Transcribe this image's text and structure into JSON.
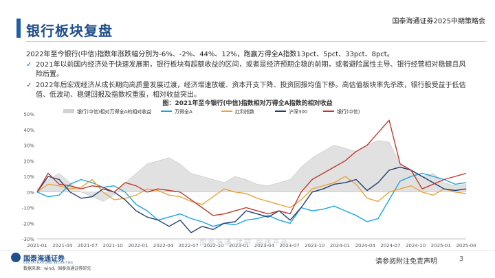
{
  "header": {
    "title": "银行板块复盘",
    "caption": "国泰海通证券2025中期策略会"
  },
  "body": {
    "lead": "2022年至今银行(中信)指数年涨跌幅分别为-6%、-2%、44%、12%，跑赢万得全A指数13pct、5pct、33pct、8pct。",
    "bullets": [
      "2021年以前国内经济处于快速发展期，银行板块有超额收益的区间，或者是经济预期企稳的前期，或者避险属性主导、银行经营相对稳健且风险后置。",
      "2022年后宏观经济从成长期向高质量发展过渡，经济增速放缓、资本开支下降、投资回报均值下移。高估值板块率先杀跌，银行股受益于低估值、低波动、稳健回报及指数权重股，相对收益突出。"
    ]
  },
  "colors": {
    "accent": "#1f5fa8",
    "title": "#1f4f8b",
    "series_relative": "#bdbdbd",
    "series_wind": "#1aa3e0",
    "series_dividend": "#e8a33a",
    "series_hs300": "#1f3c73",
    "series_bank": "#c0392b"
  },
  "chart_data": {
    "type": "line",
    "title": "图：2021年至今银行(中信)指数相对万得全A指数的相对收益",
    "legend_position": "top",
    "x_ticks": [
      "2021-01",
      "2021-04",
      "2021-07",
      "2021-10",
      "2022-01",
      "2022-04",
      "2022-07",
      "2022-10",
      "2023-01",
      "2023-04",
      "2023-07",
      "2023-10",
      "2024-01",
      "2024-04",
      "2024-07",
      "2024-10",
      "2025-01",
      "2025-04"
    ],
    "y_ticks": [
      "50%",
      "40%",
      "30%",
      "20%",
      "10%",
      "0%",
      "-10%",
      "-20%",
      "-30%"
    ],
    "ylim": [
      -0.3,
      0.5
    ],
    "grid": false,
    "series": [
      {
        "name": "银行(中信)相对万得全A的相对收益",
        "style": "area",
        "color_key": "series_relative",
        "values": [
          0.02,
          0.08,
          0.12,
          0.06,
          0.0,
          -0.03,
          -0.06,
          -0.02,
          0.06,
          0.12,
          0.18,
          0.2,
          0.22,
          0.18,
          0.12,
          0.1,
          0.08,
          0.06,
          0.1,
          0.08,
          0.05,
          0.04,
          0.06,
          0.08,
          0.16,
          0.22,
          0.26,
          0.3,
          0.28,
          0.26,
          0.3,
          0.33,
          0.32,
          0.18,
          0.14,
          0.1,
          0.12,
          0.06,
          0.04,
          0.05
        ]
      },
      {
        "name": "万得全A",
        "style": "line",
        "color_key": "series_wind",
        "values": [
          0.0,
          -0.03,
          -0.02,
          0.05,
          0.08,
          0.06,
          0.03,
          0.04,
          0.0,
          -0.08,
          -0.12,
          -0.18,
          -0.16,
          -0.14,
          -0.17,
          -0.19,
          -0.22,
          -0.2,
          -0.21,
          -0.18,
          -0.17,
          -0.15,
          -0.18,
          -0.2,
          -0.1,
          -0.12,
          -0.11,
          -0.09,
          -0.12,
          -0.15,
          -0.19,
          -0.17,
          -0.05,
          0.07,
          0.1,
          0.12,
          0.1,
          0.08,
          0.05,
          0.06
        ]
      },
      {
        "name": "红利指数",
        "style": "line",
        "color_key": "series_dividend",
        "values": [
          0.0,
          0.05,
          0.04,
          0.02,
          0.03,
          0.08,
          0.0,
          -0.05,
          -0.04,
          -0.02,
          0.02,
          0.01,
          -0.02,
          -0.03,
          -0.06,
          -0.08,
          -0.03,
          0.02,
          0.0,
          -0.01,
          -0.04,
          -0.06,
          -0.08,
          -0.1,
          -0.05,
          0.02,
          0.04,
          0.06,
          0.1,
          0.05,
          -0.04,
          -0.06,
          0.0,
          0.02,
          0.04,
          0.0,
          -0.02,
          0.02,
          0.0,
          -0.01
        ]
      },
      {
        "name": "沪深300",
        "style": "line",
        "color_key": "series_hs300",
        "values": [
          0.0,
          0.1,
          0.08,
          0.0,
          -0.04,
          -0.03,
          0.02,
          0.0,
          -0.05,
          -0.12,
          -0.16,
          -0.18,
          -0.22,
          -0.18,
          -0.26,
          -0.22,
          -0.24,
          -0.2,
          -0.19,
          -0.12,
          -0.14,
          -0.16,
          -0.12,
          -0.18,
          -0.1,
          0.0,
          0.02,
          0.05,
          0.06,
          0.08,
          0.01,
          0.06,
          0.14,
          0.16,
          0.14,
          0.1,
          0.06,
          0.02,
          0.01,
          0.02
        ]
      },
      {
        "name": "银行(中信)",
        "style": "line",
        "color_key": "series_bank",
        "values": [
          0.0,
          0.12,
          0.05,
          0.04,
          0.02,
          0.04,
          0.03,
          0.0,
          0.06,
          0.04,
          0.0,
          0.02,
          0.01,
          0.0,
          -0.05,
          -0.1,
          -0.15,
          -0.14,
          -0.12,
          -0.1,
          -0.12,
          -0.14,
          -0.12,
          -0.14,
          0.0,
          0.08,
          0.12,
          0.16,
          0.2,
          0.26,
          0.3,
          0.38,
          0.46,
          0.18,
          0.14,
          0.02,
          0.05,
          0.08,
          0.1,
          0.12
        ]
      }
    ]
  },
  "footer": {
    "logo_text": "国泰海通证券",
    "logo_sub": "GUOTAI HAITONG SECURITIES",
    "source": "数据来源：wind，国泰海通证券研究",
    "disclaimer": "请参阅附注免责声明",
    "page": "3",
    "watermark": "国泰海通 达研 在线平台"
  }
}
